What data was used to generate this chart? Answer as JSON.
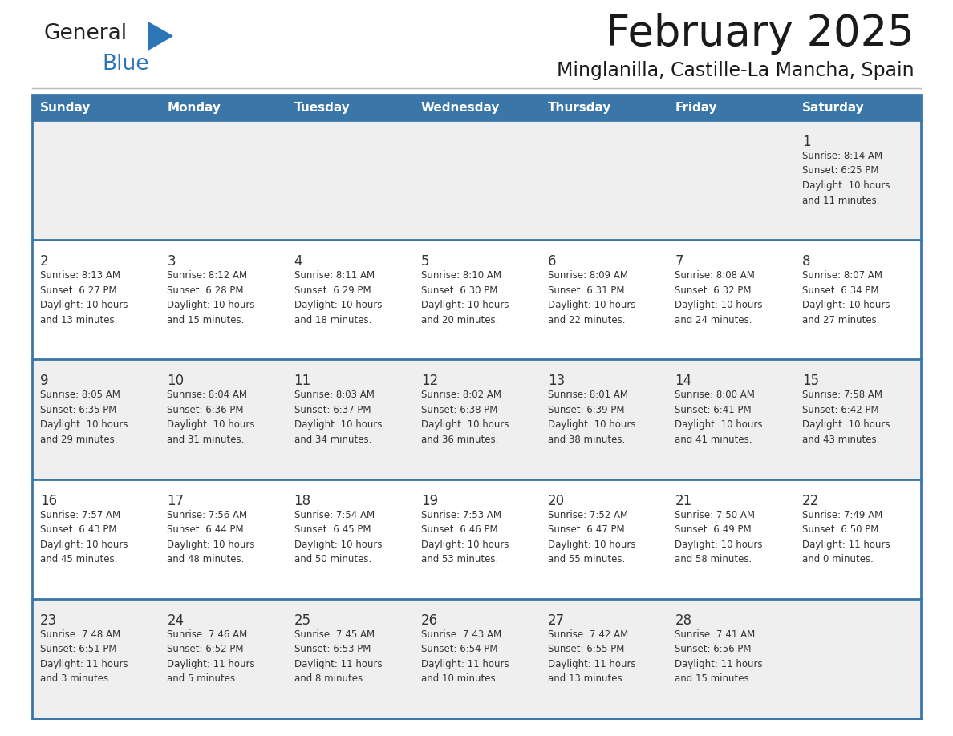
{
  "title": "February 2025",
  "subtitle": "Minglanilla, Castille-La Mancha, Spain",
  "header_bg": "#3a76a8",
  "header_text": "#ffffff",
  "day_headers": [
    "Sunday",
    "Monday",
    "Tuesday",
    "Wednesday",
    "Thursday",
    "Friday",
    "Saturday"
  ],
  "row_bg_odd": "#efefef",
  "row_bg_even": "#ffffff",
  "separator_color": "#3a76a8",
  "cell_border_color": "#bbbbbb",
  "day_num_color": "#333333",
  "info_color": "#333333",
  "background": "#ffffff",
  "logo_general_color": "#222222",
  "logo_blue_color": "#2e75b6",
  "logo_triangle_color": "#2e75b6",
  "calendar": [
    [
      {
        "day": null,
        "info": ""
      },
      {
        "day": null,
        "info": ""
      },
      {
        "day": null,
        "info": ""
      },
      {
        "day": null,
        "info": ""
      },
      {
        "day": null,
        "info": ""
      },
      {
        "day": null,
        "info": ""
      },
      {
        "day": 1,
        "info": "Sunrise: 8:14 AM\nSunset: 6:25 PM\nDaylight: 10 hours\nand 11 minutes."
      }
    ],
    [
      {
        "day": 2,
        "info": "Sunrise: 8:13 AM\nSunset: 6:27 PM\nDaylight: 10 hours\nand 13 minutes."
      },
      {
        "day": 3,
        "info": "Sunrise: 8:12 AM\nSunset: 6:28 PM\nDaylight: 10 hours\nand 15 minutes."
      },
      {
        "day": 4,
        "info": "Sunrise: 8:11 AM\nSunset: 6:29 PM\nDaylight: 10 hours\nand 18 minutes."
      },
      {
        "day": 5,
        "info": "Sunrise: 8:10 AM\nSunset: 6:30 PM\nDaylight: 10 hours\nand 20 minutes."
      },
      {
        "day": 6,
        "info": "Sunrise: 8:09 AM\nSunset: 6:31 PM\nDaylight: 10 hours\nand 22 minutes."
      },
      {
        "day": 7,
        "info": "Sunrise: 8:08 AM\nSunset: 6:32 PM\nDaylight: 10 hours\nand 24 minutes."
      },
      {
        "day": 8,
        "info": "Sunrise: 8:07 AM\nSunset: 6:34 PM\nDaylight: 10 hours\nand 27 minutes."
      }
    ],
    [
      {
        "day": 9,
        "info": "Sunrise: 8:05 AM\nSunset: 6:35 PM\nDaylight: 10 hours\nand 29 minutes."
      },
      {
        "day": 10,
        "info": "Sunrise: 8:04 AM\nSunset: 6:36 PM\nDaylight: 10 hours\nand 31 minutes."
      },
      {
        "day": 11,
        "info": "Sunrise: 8:03 AM\nSunset: 6:37 PM\nDaylight: 10 hours\nand 34 minutes."
      },
      {
        "day": 12,
        "info": "Sunrise: 8:02 AM\nSunset: 6:38 PM\nDaylight: 10 hours\nand 36 minutes."
      },
      {
        "day": 13,
        "info": "Sunrise: 8:01 AM\nSunset: 6:39 PM\nDaylight: 10 hours\nand 38 minutes."
      },
      {
        "day": 14,
        "info": "Sunrise: 8:00 AM\nSunset: 6:41 PM\nDaylight: 10 hours\nand 41 minutes."
      },
      {
        "day": 15,
        "info": "Sunrise: 7:58 AM\nSunset: 6:42 PM\nDaylight: 10 hours\nand 43 minutes."
      }
    ],
    [
      {
        "day": 16,
        "info": "Sunrise: 7:57 AM\nSunset: 6:43 PM\nDaylight: 10 hours\nand 45 minutes."
      },
      {
        "day": 17,
        "info": "Sunrise: 7:56 AM\nSunset: 6:44 PM\nDaylight: 10 hours\nand 48 minutes."
      },
      {
        "day": 18,
        "info": "Sunrise: 7:54 AM\nSunset: 6:45 PM\nDaylight: 10 hours\nand 50 minutes."
      },
      {
        "day": 19,
        "info": "Sunrise: 7:53 AM\nSunset: 6:46 PM\nDaylight: 10 hours\nand 53 minutes."
      },
      {
        "day": 20,
        "info": "Sunrise: 7:52 AM\nSunset: 6:47 PM\nDaylight: 10 hours\nand 55 minutes."
      },
      {
        "day": 21,
        "info": "Sunrise: 7:50 AM\nSunset: 6:49 PM\nDaylight: 10 hours\nand 58 minutes."
      },
      {
        "day": 22,
        "info": "Sunrise: 7:49 AM\nSunset: 6:50 PM\nDaylight: 11 hours\nand 0 minutes."
      }
    ],
    [
      {
        "day": 23,
        "info": "Sunrise: 7:48 AM\nSunset: 6:51 PM\nDaylight: 11 hours\nand 3 minutes."
      },
      {
        "day": 24,
        "info": "Sunrise: 7:46 AM\nSunset: 6:52 PM\nDaylight: 11 hours\nand 5 minutes."
      },
      {
        "day": 25,
        "info": "Sunrise: 7:45 AM\nSunset: 6:53 PM\nDaylight: 11 hours\nand 8 minutes."
      },
      {
        "day": 26,
        "info": "Sunrise: 7:43 AM\nSunset: 6:54 PM\nDaylight: 11 hours\nand 10 minutes."
      },
      {
        "day": 27,
        "info": "Sunrise: 7:42 AM\nSunset: 6:55 PM\nDaylight: 11 hours\nand 13 minutes."
      },
      {
        "day": 28,
        "info": "Sunrise: 7:41 AM\nSunset: 6:56 PM\nDaylight: 11 hours\nand 15 minutes."
      },
      {
        "day": null,
        "info": ""
      }
    ]
  ]
}
